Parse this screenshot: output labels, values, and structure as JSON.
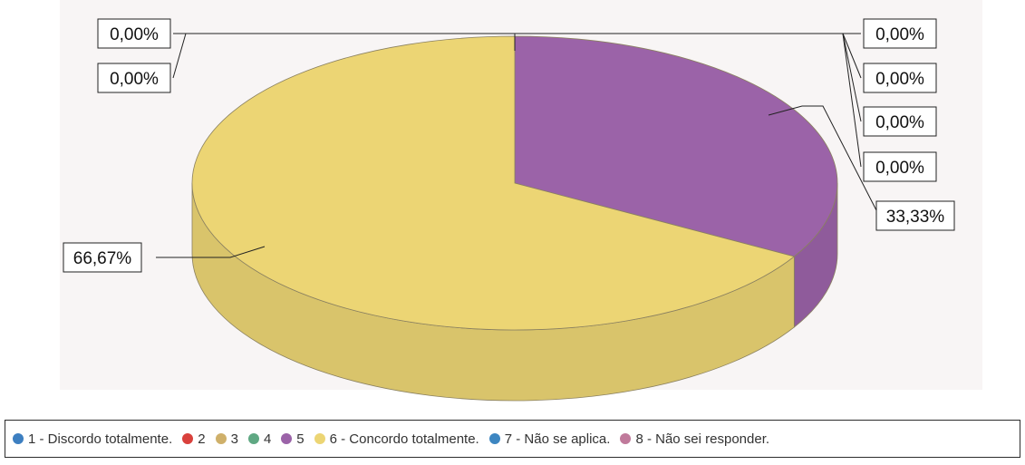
{
  "chart_data": {
    "type": "pie",
    "title": "",
    "three_d": true,
    "legend_position": "bottom",
    "slices": [
      {
        "label": "1 - Discordo totalmente.",
        "value": 0.0,
        "value_label": "0,00%",
        "color": "#3d7fc1"
      },
      {
        "label": "2",
        "value": 0.0,
        "value_label": "0,00%",
        "color": "#d9413c"
      },
      {
        "label": "3",
        "value": 0.0,
        "value_label": "0,00%",
        "color": "#cfb06a"
      },
      {
        "label": "4",
        "value": 0.0,
        "value_label": "0,00%",
        "color": "#5fa883"
      },
      {
        "label": "5",
        "value": 33.33,
        "value_label": "33,33%",
        "color": "#9b63a8"
      },
      {
        "label": "6 - Concordo totalmente.",
        "value": 66.67,
        "value_label": "66,67%",
        "color": "#ecd574"
      },
      {
        "label": "7 - Não se aplica.",
        "value": 0.0,
        "value_label": "0,00%",
        "color": "#3d86c1"
      },
      {
        "label": "8 - Não sei responder.",
        "value": 0.0,
        "value_label": "0,00%",
        "color": "#c07a9b"
      }
    ]
  }
}
